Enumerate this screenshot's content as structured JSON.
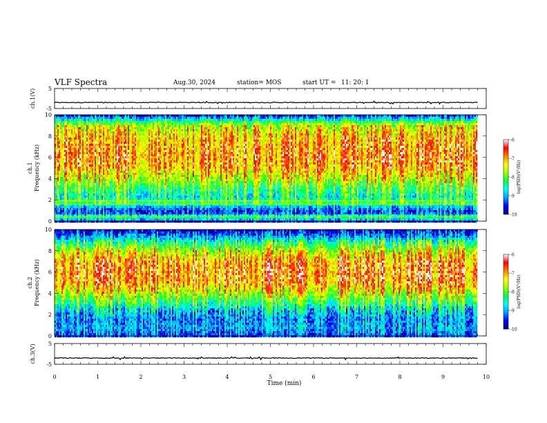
{
  "header": {
    "title": "VLF Spectra",
    "date": "Aug.30, 2024",
    "station": "station= MOS",
    "start_ut_label": "start  UT  =",
    "start_ut_value": "11: 20: 1"
  },
  "chart_data": [
    {
      "type": "line",
      "panel": "ch1-waveform",
      "ylabel": "ch.1(V)",
      "ylim": [
        -5,
        5
      ],
      "y_tick_labels": [
        "5",
        "-5"
      ],
      "x_range": [
        0,
        10
      ],
      "series": [
        {
          "x": [
            0,
            9.8
          ],
          "values": [
            -2,
            -2
          ]
        }
      ]
    },
    {
      "type": "heatmap",
      "panel": "ch1-spectrogram",
      "ylabel": "ch.1\nFrequency  (kHz)",
      "ylim": [
        0,
        10
      ],
      "y_tick_labels": [
        "0",
        "2",
        "4",
        "6",
        "8",
        "10"
      ],
      "x_range": [
        0,
        10
      ],
      "data_end_time": 9.8,
      "band_profile": {
        "freq_khz": [
          0,
          0.3,
          0.8,
          1.2,
          1.8,
          2.2,
          3,
          4,
          5,
          6,
          7,
          8,
          9,
          9.5,
          10
        ],
        "log_psd": [
          -9.6,
          -8.2,
          -9.5,
          -9.2,
          -8.0,
          -8.6,
          -8.2,
          -7.6,
          -7.1,
          -6.9,
          -7.0,
          -7.2,
          -7.6,
          -8.6,
          -9.7
        ]
      },
      "colorbar": {
        "label": "log(PSD)(V²/Hz)",
        "min": -10,
        "max": -6,
        "tick_labels": [
          "-6",
          "-7",
          "-8",
          "-9",
          "-10"
        ]
      }
    },
    {
      "type": "heatmap",
      "panel": "ch2-spectrogram",
      "ylabel": "ch.2\nFrequency  (kHz)",
      "ylim": [
        0,
        10
      ],
      "y_tick_labels": [
        "0",
        "2",
        "4",
        "6",
        "8",
        "10"
      ],
      "x_range": [
        0,
        10
      ],
      "data_end_time": 9.8,
      "band_profile": {
        "freq_khz": [
          0,
          0.8,
          1.5,
          2.5,
          3.2,
          4,
          5,
          6,
          7,
          8,
          8.8,
          9.5,
          10
        ],
        "log_psd": [
          -9.4,
          -9.0,
          -9.2,
          -8.8,
          -8.2,
          -7.6,
          -7.0,
          -6.85,
          -7.0,
          -7.6,
          -8.4,
          -9.3,
          -9.8
        ]
      },
      "colorbar": {
        "label": "log(PSD)(V²/Hz)",
        "min": -10,
        "max": -6,
        "tick_labels": [
          "-6",
          "-7",
          "-8",
          "-9",
          "-10"
        ]
      }
    },
    {
      "type": "line",
      "panel": "ch3-waveform",
      "ylabel": "ch.3(V)",
      "ylim": [
        -5,
        5
      ],
      "y_tick_labels": [
        "5",
        "-5"
      ],
      "xlabel": "Time  (min)",
      "x_range": [
        0,
        10
      ],
      "x_tick_labels": [
        "0",
        "1",
        "2",
        "3",
        "4",
        "5",
        "6",
        "7",
        "8",
        "9",
        "10"
      ],
      "series": [
        {
          "x": [
            0,
            9.8
          ],
          "values": [
            -2,
            -2
          ]
        }
      ]
    }
  ],
  "colors": {
    "colormap": [
      "#000080",
      "#0000ff",
      "#00a0ff",
      "#00ffff",
      "#00ff40",
      "#a0ff00",
      "#ffff00",
      "#ff8000",
      "#ff0000",
      "#ffffff"
    ]
  }
}
